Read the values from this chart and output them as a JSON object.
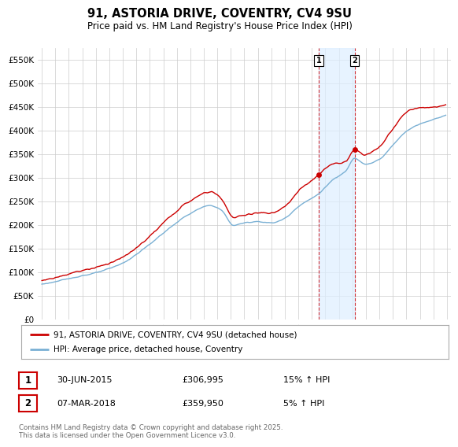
{
  "title": "91, ASTORIA DRIVE, COVENTRY, CV4 9SU",
  "subtitle": "Price paid vs. HM Land Registry's House Price Index (HPI)",
  "ylim": [
    0,
    575000
  ],
  "yticks": [
    0,
    50000,
    100000,
    150000,
    200000,
    250000,
    300000,
    350000,
    400000,
    450000,
    500000,
    550000
  ],
  "purchase1_price": 306995,
  "purchase2_price": 359950,
  "purchase1_year": 2015.5,
  "purchase2_year": 2018.17,
  "hpi_color": "#7ab0d4",
  "price_color": "#cc0000",
  "shade_color": "#ddeeff",
  "grid_color": "#cccccc",
  "background_color": "#ffffff",
  "legend_entry1": "91, ASTORIA DRIVE, COVENTRY, CV4 9SU (detached house)",
  "legend_entry2": "HPI: Average price, detached house, Coventry",
  "footer": "Contains HM Land Registry data © Crown copyright and database right 2025.\nThis data is licensed under the Open Government Licence v3.0.",
  "table_row1": [
    "1",
    "30-JUN-2015",
    "£306,995",
    "15% ↑ HPI"
  ],
  "table_row2": [
    "2",
    "07-MAR-2018",
    "£359,950",
    "5% ↑ HPI"
  ],
  "xstart": 1995,
  "xend": 2025
}
